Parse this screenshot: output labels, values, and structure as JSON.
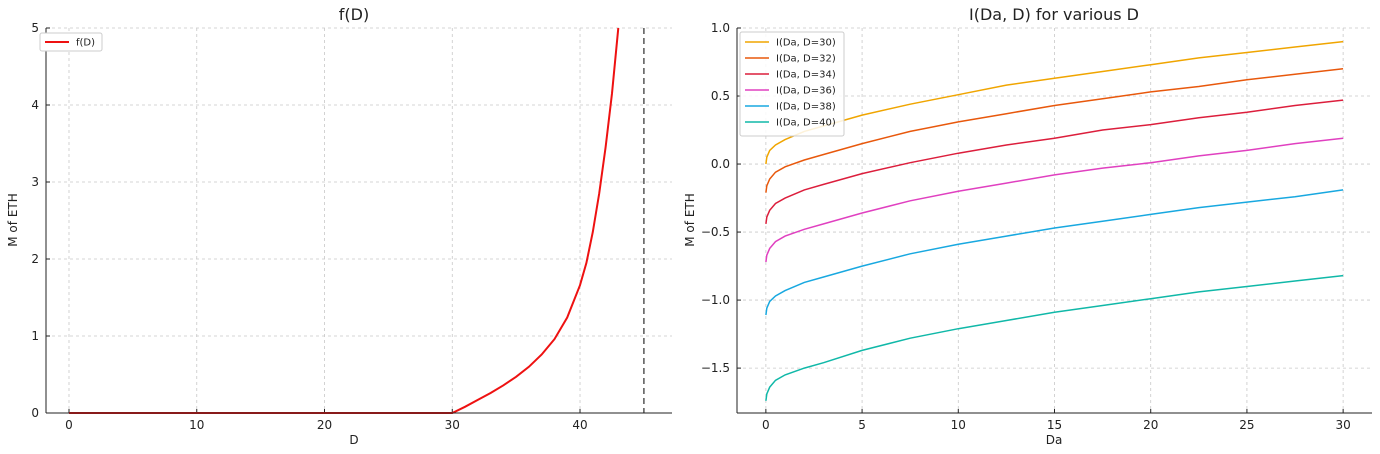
{
  "colors": {
    "fd_line": "#ee1111",
    "vline": "#555555",
    "series": [
      "#f0a500",
      "#e8580c",
      "#dc1e3c",
      "#e040c0",
      "#18a8e0",
      "#10b8a8"
    ]
  },
  "chart_data": [
    {
      "type": "line",
      "title": "f(D)",
      "xlabel": "D",
      "ylabel": "M of ETH",
      "xlim": [
        -1.8,
        47.2
      ],
      "ylim": [
        0,
        5
      ],
      "xticks": [
        0,
        10,
        20,
        30,
        40
      ],
      "xtick_labels": [
        "0",
        "10",
        "20",
        "30",
        "40"
      ],
      "yticks": [
        0,
        1,
        2,
        3,
        4,
        5
      ],
      "ytick_labels": [
        "0",
        "1",
        "2",
        "3",
        "4",
        "5"
      ],
      "grid": true,
      "legend_position": "top-left",
      "vline_x": 45,
      "series": [
        {
          "name": "f(D)",
          "x": [
            0,
            5,
            10,
            15,
            20,
            25,
            30,
            31,
            32,
            33,
            34,
            35,
            36,
            37,
            38,
            39,
            40,
            40.5,
            41,
            41.5,
            42,
            42.5,
            43
          ],
          "y": [
            0,
            0,
            0,
            0,
            0,
            0,
            0,
            0.08,
            0.17,
            0.26,
            0.36,
            0.47,
            0.6,
            0.76,
            0.96,
            1.24,
            1.66,
            1.95,
            2.35,
            2.85,
            3.45,
            4.15,
            5.0
          ]
        }
      ]
    },
    {
      "type": "line",
      "title": "I(Da, D) for various D",
      "xlabel": "Da",
      "ylabel": "M of ETH",
      "xlim": [
        -1.5,
        31.5
      ],
      "ylim": [
        -1.83,
        1.0
      ],
      "xticks": [
        0,
        5,
        10,
        15,
        20,
        25,
        30
      ],
      "xtick_labels": [
        "0",
        "5",
        "10",
        "15",
        "20",
        "25",
        "30"
      ],
      "yticks": [
        -1.5,
        -1.0,
        -0.5,
        0.0,
        0.5,
        1.0
      ],
      "ytick_labels": [
        "−1.5",
        "−1.0",
        "−0.5",
        "0.0",
        "0.5",
        "1.0"
      ],
      "grid": true,
      "legend_position": "top-left",
      "x": [
        0,
        0.05,
        0.2,
        0.5,
        1,
        2,
        3,
        5,
        7.5,
        10,
        12.5,
        15,
        17.5,
        20,
        22.5,
        25,
        27.5,
        30
      ],
      "series": [
        {
          "name": "I(Da, D=30)",
          "y": [
            0.0,
            0.05,
            0.1,
            0.14,
            0.18,
            0.24,
            0.28,
            0.36,
            0.44,
            0.51,
            0.58,
            0.63,
            0.68,
            0.73,
            0.78,
            0.82,
            0.86,
            0.9
          ]
        },
        {
          "name": "I(Da, D=32)",
          "y": [
            -0.21,
            -0.16,
            -0.11,
            -0.06,
            -0.02,
            0.03,
            0.07,
            0.15,
            0.24,
            0.31,
            0.37,
            0.43,
            0.48,
            0.53,
            0.57,
            0.62,
            0.66,
            0.7
          ]
        },
        {
          "name": "I(Da, D=34)",
          "y": [
            -0.44,
            -0.39,
            -0.34,
            -0.29,
            -0.25,
            -0.19,
            -0.15,
            -0.07,
            0.01,
            0.08,
            0.14,
            0.19,
            0.25,
            0.29,
            0.34,
            0.38,
            0.43,
            0.47
          ]
        },
        {
          "name": "I(Da, D=36)",
          "y": [
            -0.72,
            -0.67,
            -0.62,
            -0.57,
            -0.53,
            -0.48,
            -0.44,
            -0.36,
            -0.27,
            -0.2,
            -0.14,
            -0.08,
            -0.03,
            0.01,
            0.06,
            0.1,
            0.15,
            0.19
          ]
        },
        {
          "name": "I(Da, D=38)",
          "y": [
            -1.11,
            -1.06,
            -1.01,
            -0.97,
            -0.93,
            -0.87,
            -0.83,
            -0.75,
            -0.66,
            -0.59,
            -0.53,
            -0.47,
            -0.42,
            -0.37,
            -0.32,
            -0.28,
            -0.24,
            -0.19
          ]
        },
        {
          "name": "I(Da, D=40)",
          "y": [
            -1.74,
            -1.69,
            -1.64,
            -1.59,
            -1.55,
            -1.5,
            -1.46,
            -1.37,
            -1.28,
            -1.21,
            -1.15,
            -1.09,
            -1.04,
            -0.99,
            -0.94,
            -0.9,
            -0.86,
            -0.82
          ]
        }
      ]
    }
  ]
}
